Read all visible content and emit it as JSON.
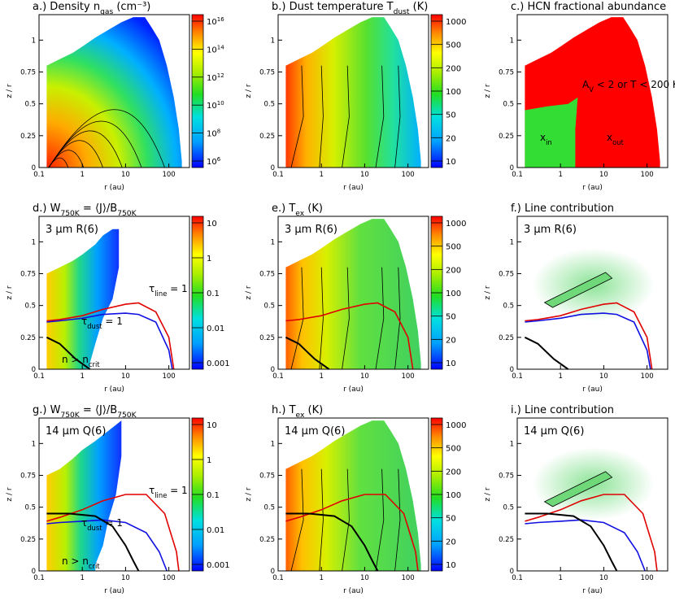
{
  "figure": {
    "r_label": "r (au)",
    "z_label": "z / r",
    "x_ticks": [
      "0.1",
      "1",
      "10",
      "100"
    ],
    "y_ticks": [
      "0",
      "0.25",
      "0.5",
      "0.75",
      "1"
    ]
  },
  "panels": [
    {
      "id": "a",
      "title": "a.) Density n_gas (cm⁻³)",
      "colormap": "jet",
      "colorbar": {
        "scale": "log",
        "ticks": [
          "10^16",
          "10^14",
          "10^12",
          "10^10",
          "10^8",
          "10^6"
        ]
      },
      "annotations": []
    },
    {
      "id": "b",
      "title": "b.) Dust temperature T_dust (K)",
      "colormap": "jet",
      "colorbar": {
        "scale": "log",
        "ticks": [
          "1000",
          "500",
          "200",
          "100",
          "50",
          "20",
          "10"
        ]
      },
      "annotations": []
    },
    {
      "id": "c",
      "title": "c.) HCN fractional abundance",
      "colormap": "none",
      "colorbar": null,
      "annotations": [
        "A_V < 2 or T < 200 K",
        "x_in",
        "x_out"
      ]
    },
    {
      "id": "d",
      "title": "d.) W_750K = ⟨J⟩/B_750K",
      "colormap": "jet",
      "colorbar": {
        "scale": "log",
        "ticks": [
          "10",
          "1",
          "0.1",
          "0.01",
          "0.001"
        ]
      },
      "annotations": [
        "3 μm R(6)",
        "τ_line = 1",
        "τ_dust = 1",
        "n > n_crit"
      ]
    },
    {
      "id": "e",
      "title": "e.) T_ex (K)",
      "colormap": "jet",
      "colorbar": {
        "scale": "log",
        "ticks": [
          "1000",
          "500",
          "200",
          "100",
          "50",
          "20",
          "10"
        ]
      },
      "annotations": [
        "3 μm R(6)"
      ]
    },
    {
      "id": "f",
      "title": "f.) Line contribution",
      "colormap": "none",
      "colorbar": null,
      "annotations": [
        "3 μm R(6)"
      ]
    },
    {
      "id": "g",
      "title": "g.) W_750K = ⟨J⟩/B_750K",
      "colormap": "jet",
      "colorbar": {
        "scale": "log",
        "ticks": [
          "10",
          "1",
          "0.1",
          "0.01",
          "0.001"
        ]
      },
      "annotations": [
        "14 μm Q(6)",
        "τ_line = 1",
        "τ_dust = 1",
        "n > n_crit"
      ]
    },
    {
      "id": "h",
      "title": "h.) T_ex (K)",
      "colormap": "jet",
      "colorbar": {
        "scale": "log",
        "ticks": [
          "1000",
          "500",
          "200",
          "100",
          "50",
          "20",
          "10"
        ]
      },
      "annotations": [
        "14 μm Q(6)"
      ]
    },
    {
      "id": "i",
      "title": "i.) Line contribution",
      "colormap": "none",
      "colorbar": null,
      "annotations": [
        "14 μm Q(6)"
      ]
    }
  ],
  "chart_data": [
    {
      "type": "heatmap",
      "title": "Density n_gas (cm^-3)",
      "xlabel": "r (au)",
      "ylabel": "z/r",
      "xscale": "log",
      "xlim": [
        0.1,
        300
      ],
      "ylim": [
        0,
        1.2
      ],
      "colorbar_range": [
        "1e6",
        "1e16"
      ]
    },
    {
      "type": "heatmap",
      "title": "Dust temperature T_dust (K)",
      "xlabel": "r (au)",
      "ylabel": "z/r",
      "xscale": "log",
      "xlim": [
        0.1,
        300
      ],
      "ylim": [
        0,
        1.2
      ],
      "colorbar_range": [
        10,
        1500
      ]
    },
    {
      "type": "heatmap",
      "title": "HCN fractional abundance",
      "xlabel": "r (au)",
      "ylabel": "z/r",
      "regions": [
        "x_in",
        "x_out"
      ],
      "condition": "A_V < 2 or T < 200 K"
    },
    {
      "type": "heatmap",
      "title": "W_750K = <J>/B_750K",
      "line": "3 um R(6)",
      "xlabel": "r (au)",
      "ylabel": "z/r",
      "colorbar_range": [
        0.001,
        20
      ],
      "tau_line_1": {
        "r": [
          0.15,
          0.3,
          1,
          3,
          10,
          20,
          50,
          100,
          130
        ],
        "z_over_r": [
          0.38,
          0.39,
          0.42,
          0.47,
          0.51,
          0.52,
          0.45,
          0.25,
          0.0
        ]
      },
      "tau_dust_1": {
        "r": [
          0.15,
          0.3,
          1,
          3,
          10,
          20,
          50,
          100,
          120
        ],
        "z_over_r": [
          0.37,
          0.38,
          0.4,
          0.43,
          0.44,
          0.43,
          0.37,
          0.15,
          0.0
        ]
      },
      "n_crit": {
        "r": [
          0.15,
          0.3,
          0.7,
          1.5
        ],
        "z_over_r": [
          0.25,
          0.2,
          0.08,
          0.0
        ]
      }
    },
    {
      "type": "heatmap",
      "title": "T_ex (K)",
      "line": "3 um R(6)",
      "xlabel": "r (au)",
      "ylabel": "z/r",
      "colorbar_range": [
        10,
        1500
      ]
    },
    {
      "type": "heatmap",
      "title": "Line contribution",
      "line": "3 um R(6)",
      "xlabel": "r (au)",
      "ylabel": "z/r"
    },
    {
      "type": "heatmap",
      "title": "W_750K = <J>/B_750K",
      "line": "14 um Q(6)",
      "xlabel": "r (au)",
      "ylabel": "z/r",
      "colorbar_range": [
        0.001,
        20
      ],
      "tau_line_1": {
        "r": [
          0.15,
          0.3,
          1,
          3,
          10,
          30,
          80,
          150,
          170
        ],
        "z_over_r": [
          0.39,
          0.42,
          0.48,
          0.55,
          0.6,
          0.6,
          0.45,
          0.15,
          0.0
        ]
      },
      "tau_dust_1": {
        "r": [
          0.15,
          0.3,
          1,
          3,
          10,
          30,
          60,
          90
        ],
        "z_over_r": [
          0.37,
          0.38,
          0.39,
          0.4,
          0.38,
          0.3,
          0.15,
          0.0
        ]
      },
      "n_crit": {
        "r": [
          0.15,
          0.5,
          2,
          5,
          10,
          15,
          20
        ],
        "z_over_r": [
          0.45,
          0.45,
          0.43,
          0.35,
          0.2,
          0.08,
          0.0
        ]
      }
    },
    {
      "type": "heatmap",
      "title": "T_ex (K)",
      "line": "14 um Q(6)",
      "xlabel": "r (au)",
      "ylabel": "z/r",
      "colorbar_range": [
        10,
        1500
      ]
    },
    {
      "type": "heatmap",
      "title": "Line contribution",
      "line": "14 um Q(6)",
      "xlabel": "r (au)",
      "ylabel": "z/r"
    }
  ]
}
